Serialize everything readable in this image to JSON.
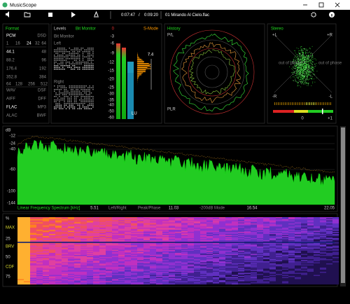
{
  "window": {
    "title": "MusicScope"
  },
  "toolbar": {
    "elapsed": "0:07:47",
    "separator": "/",
    "total": "0:09:20",
    "track": "01 Mirando Al Cielo.flac"
  },
  "format": {
    "title": "Format",
    "pcm": "PCM",
    "dsd": "DSD",
    "bits": [
      "1",
      "16",
      "24",
      "32",
      "64"
    ],
    "rates": [
      "44.1",
      "48",
      "88.2",
      "96",
      "176.4",
      "192",
      "352.8",
      "384"
    ],
    "dsd_rates": [
      "64",
      "128",
      "256",
      "512"
    ],
    "containers": [
      "WAV",
      "DSF",
      "AIFF",
      "DFF",
      "FLAC",
      "MP3",
      "ALAC",
      "BWF"
    ]
  },
  "levels": {
    "title": "Levels",
    "bit_monitor": "Bit Monitor",
    "bit_monitor_sub": "Bit Monitor",
    "left": "Left",
    "right": "Right",
    "scale": [
      "0",
      "-3",
      "-6",
      "-9",
      "-12",
      "-15",
      "-20",
      "-25",
      "-30",
      "-35",
      "-40",
      "-50",
      "-60"
    ],
    "s_mode": "S-Mode",
    "loudness": "7.4",
    "unit": "LU"
  },
  "history": {
    "title": "History",
    "top": "P/L",
    "bottom": "PLR"
  },
  "stereo": {
    "title": "Stereo",
    "top_left": "+L",
    "top_right": "+R",
    "bottom_left": "-R",
    "bottom_right": "-L",
    "phase_left": "out of phase",
    "phase_right": "out of phase",
    "zero": "0",
    "plus_one": "+1"
  },
  "spectrum": {
    "unit": "dB",
    "yticks": [
      "-12",
      "-24",
      "-40",
      "-60",
      "-100",
      "-144"
    ],
    "mode": "Linear Frequency Spectrum [kHz]",
    "xticks": [
      "5.51",
      "11.03",
      "16.54",
      "22.05"
    ],
    "options": [
      "Left/Right",
      "Peak/Phase",
      "-200dB Mode"
    ]
  },
  "spectrogram": {
    "labels": [
      "%",
      "MAX",
      "25",
      "BRV",
      "50",
      "CDF",
      "75"
    ]
  }
}
